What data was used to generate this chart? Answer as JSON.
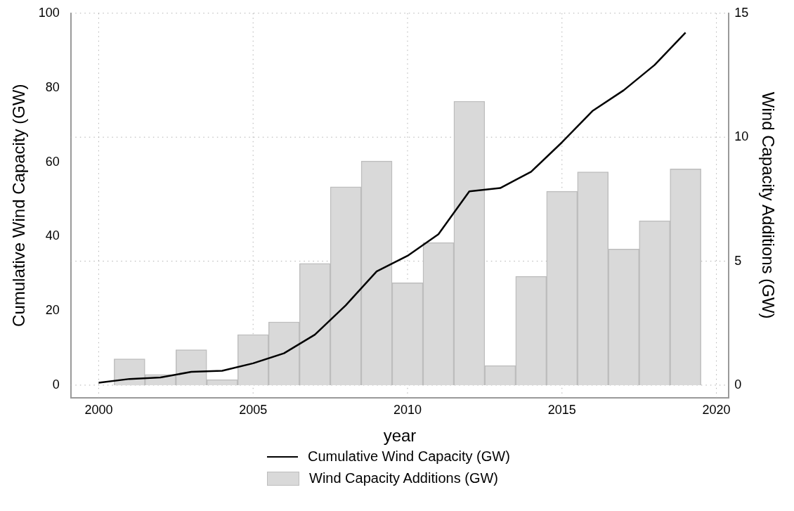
{
  "chart_data": {
    "type": "bar",
    "xlabel": "year",
    "ylabel": "Cumulative Wind Capacity (GW)",
    "y2label": "Wind Capacity Additions (GW)",
    "x": [
      2000,
      2001,
      2002,
      2003,
      2004,
      2005,
      2006,
      2007,
      2008,
      2009,
      2010,
      2011,
      2012,
      2013,
      2014,
      2015,
      2016,
      2017,
      2018,
      2019
    ],
    "series": [
      {
        "name": "Cumulative Wind Capacity (GW)",
        "type": "line",
        "color": "#000000",
        "values": [
          0.7,
          1.7,
          2.1,
          3.6,
          3.9,
          5.9,
          8.6,
          13.6,
          21.5,
          30.6,
          34.8,
          40.6,
          52.1,
          53.0,
          57.4,
          65.3,
          73.8,
          79.3,
          86.1,
          94.8
        ]
      },
      {
        "name": "Wind Capacity Additions (GW)",
        "axis": "y2",
        "color": "#d9d9d9",
        "values": [
          0,
          1.06,
          0.43,
          1.43,
          0.22,
          2.04,
          2.55,
          4.91,
          8.0,
          9.04,
          4.13,
          5.75,
          11.45,
          0.79,
          4.39,
          7.82,
          8.6,
          5.49,
          6.63,
          8.72
        ]
      }
    ],
    "xlim": [
      1999.1,
      2020.4
    ],
    "xticks": [
      2000,
      2005,
      2010,
      2015,
      2020
    ],
    "ylim": [
      -3.3,
      100
    ],
    "yticks": [
      0,
      20,
      40,
      60,
      80,
      100
    ],
    "y2lim": [
      -0.5,
      15
    ],
    "y2ticks": [
      0,
      5,
      10,
      15
    ],
    "grid": true,
    "legend": "bottom",
    "marker": "none",
    "line_style": "solid"
  }
}
